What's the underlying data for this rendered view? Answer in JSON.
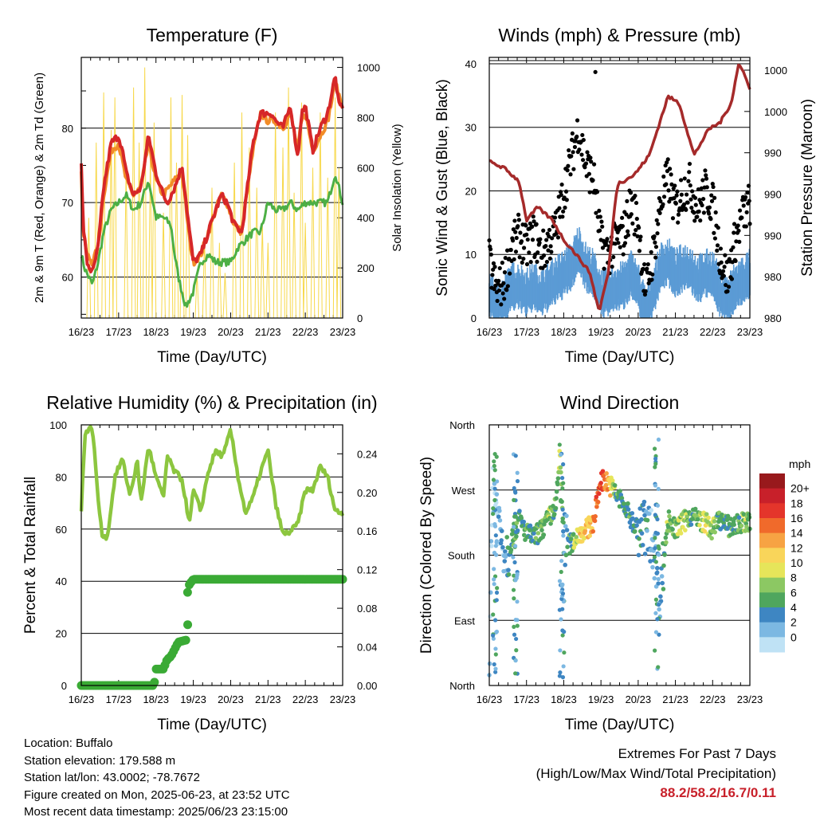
{
  "days": [
    "16/23",
    "17/23",
    "18/23",
    "19/23",
    "20/23",
    "21/23",
    "22/23",
    "23/23"
  ],
  "colors": {
    "temp_2m": "#d62728",
    "temp_9m": "#f28c28",
    "dewpoint": "#4daf45",
    "solar": "#f7d84a",
    "wind": "#5b9bd5",
    "gust": "#000000",
    "pressure": "#a52a2a",
    "humidity": "#8cc63f",
    "precip": "#3aaa35",
    "extremes_text": "#c8202a"
  },
  "info": {
    "location": "Location: Buffalo",
    "elevation": "Station elevation: 179.588 m",
    "latlon": "Station lat/lon: 43.0002; -78.7672",
    "created": "Figure created on Mon, 2025-06-23, at 23:52 UTC",
    "recent": "Most recent data timestamp: 2025/06/23 23:15:00"
  },
  "extremes": {
    "title": "Extremes For Past 7 Days",
    "subtitle": "(High/Low/Max Wind/Total Precipitation)",
    "values": "88.2/58.2/16.7/0.11"
  },
  "chart_data": [
    {
      "type": "line",
      "title": "Temperature (F)",
      "xlabel": "Time (Day/UTC)",
      "ylabel": "2m & 9m T (Red, Orange) & 2m Td (Green)",
      "y2label": "Solar Insolation (Yellow)",
      "xlim": [
        0,
        7
      ],
      "ylim": [
        54.5,
        89.5
      ],
      "y2lim": [
        0,
        1040
      ],
      "yticks": [
        60,
        70,
        80
      ],
      "y2ticks": [
        0,
        200,
        400,
        600,
        800,
        1000
      ],
      "grid": true,
      "series": [
        {
          "key": "t2m",
          "axis": "y",
          "x": [
            0,
            0.05,
            0.15,
            0.3,
            0.45,
            0.6,
            0.8,
            1.0,
            1.1,
            1.2,
            1.4,
            1.6,
            1.8,
            2.0,
            2.2,
            2.3,
            2.5,
            2.7,
            2.9,
            3.0,
            3.2,
            3.4,
            3.6,
            3.75,
            3.9,
            4.1,
            4.3,
            4.4,
            4.6,
            4.8,
            5.0,
            5.1,
            5.2,
            5.4,
            5.6,
            5.8,
            5.9,
            6.0,
            6.2,
            6.4,
            6.6,
            6.8,
            6.9,
            7.0
          ],
          "values": [
            75,
            67,
            62,
            60.5,
            64,
            72,
            78,
            79,
            77,
            74,
            71,
            72,
            79,
            74,
            71,
            70,
            72,
            75,
            66,
            62,
            63,
            66,
            69,
            71,
            70,
            67,
            66,
            70,
            78,
            82,
            82,
            82,
            81,
            80,
            83,
            76,
            82,
            83,
            77,
            80,
            82,
            87,
            83,
            83
          ]
        },
        {
          "key": "t9m",
          "axis": "y",
          "x": [
            0,
            0.05,
            0.15,
            0.3,
            0.45,
            0.6,
            0.8,
            1.0,
            1.2,
            1.4,
            1.6,
            1.8,
            2.0,
            2.2,
            2.5,
            2.7,
            2.9,
            3.0,
            3.2,
            3.4,
            3.6,
            3.75,
            3.9,
            4.1,
            4.3,
            4.4,
            4.6,
            4.8,
            5.0,
            5.2,
            5.4,
            5.6,
            5.8,
            5.9,
            6.0,
            6.2,
            6.4,
            6.6,
            6.8,
            7.0
          ],
          "values": [
            74,
            66,
            63,
            62,
            64,
            71,
            77,
            78,
            73,
            71,
            72,
            78,
            73,
            71,
            73,
            74,
            65,
            62,
            63,
            66,
            69,
            71,
            70,
            67,
            66,
            70,
            77,
            82,
            81,
            81,
            80,
            82,
            77,
            81,
            82,
            77,
            79,
            81,
            86,
            83
          ]
        },
        {
          "key": "td",
          "axis": "y",
          "x": [
            0,
            0.1,
            0.3,
            0.45,
            0.6,
            0.8,
            1.0,
            1.2,
            1.4,
            1.6,
            1.8,
            2.0,
            2.2,
            2.4,
            2.5,
            2.6,
            2.8,
            3.0,
            3.2,
            3.4,
            3.6,
            3.8,
            4.0,
            4.2,
            4.4,
            4.6,
            4.8,
            5.0,
            5.2,
            5.4,
            5.6,
            5.8,
            6.0,
            6.2,
            6.4,
            6.6,
            6.8,
            6.9,
            7.0
          ],
          "values": [
            63,
            61,
            59,
            62,
            66,
            69,
            70,
            71,
            69,
            70,
            73,
            68,
            68,
            67,
            63,
            60,
            56,
            58,
            62,
            63,
            62,
            62,
            62,
            64,
            65,
            66,
            66,
            70,
            69,
            69,
            70,
            69,
            70,
            70,
            70,
            70,
            74,
            72,
            70
          ]
        },
        {
          "key": "solar",
          "axis": "y2",
          "style": "spikes",
          "peaks_x": [
            0.2,
            0.4,
            0.6,
            0.8,
            0.9,
            1.2,
            1.4,
            1.55,
            1.7,
            1.85,
            1.95,
            2.2,
            2.4,
            2.55,
            2.7,
            2.85,
            3.1,
            3.3,
            3.5,
            3.7,
            3.85,
            4.1,
            4.3,
            4.5,
            4.7,
            4.85,
            5.0,
            5.2,
            5.4,
            5.55,
            5.7,
            5.9,
            6.0,
            6.2,
            6.4,
            6.6,
            6.8,
            6.9
          ],
          "values": [
            400,
            700,
            900,
            750,
            880,
            600,
            920,
            700,
            1000,
            650,
            780,
            420,
            880,
            620,
            890,
            730,
            180,
            320,
            520,
            300,
            180,
            620,
            820,
            680,
            520,
            380,
            300,
            820,
            680,
            920,
            500,
            860,
            380,
            600,
            820,
            560,
            880,
            600
          ]
        }
      ]
    },
    {
      "type": "line",
      "title": "Winds (mph) & Pressure (mb)",
      "xlabel": "Time (Day/UTC)",
      "ylabel": "Sonic Wind & Gust (Blue, Black)",
      "y2label": "Station Pressure (Maroon)",
      "xlim": [
        0,
        7
      ],
      "ylim": [
        0,
        41
      ],
      "yticks": [
        0,
        10,
        20,
        30,
        40
      ],
      "y2_tick_labels": [
        "980",
        "980",
        "990",
        "990",
        "990",
        "1000",
        "1000"
      ],
      "grid": true,
      "series": [
        {
          "key": "gust",
          "style": "points",
          "x": [
            0,
            0.2,
            0.4,
            0.6,
            0.8,
            1.0,
            1.2,
            1.4,
            1.6,
            1.8,
            2.0,
            2.2,
            2.4,
            2.6,
            2.8,
            3.0,
            3.2,
            3.4,
            3.6,
            3.8,
            4.0,
            4.2,
            4.4,
            4.6,
            4.8,
            5.0,
            5.2,
            5.4,
            5.6,
            5.8,
            6.0,
            6.2,
            6.4,
            6.6,
            6.8,
            7.0
          ],
          "values": [
            9,
            4,
            6,
            11,
            13,
            11,
            13,
            10,
            12,
            14,
            20,
            25,
            30,
            24,
            22,
            12,
            10,
            12,
            13,
            18,
            15,
            4,
            10,
            18,
            22,
            17,
            20,
            21,
            17,
            20,
            18,
            10,
            6,
            12,
            16,
            18
          ]
        },
        {
          "key": "wind",
          "style": "band",
          "x": [
            0,
            0.2,
            0.4,
            0.6,
            0.8,
            1.0,
            1.2,
            1.4,
            1.6,
            1.8,
            2.0,
            2.2,
            2.4,
            2.6,
            2.8,
            3.0,
            3.2,
            3.4,
            3.6,
            3.8,
            4.0,
            4.2,
            4.4,
            4.6,
            4.8,
            5.0,
            5.2,
            5.4,
            5.6,
            5.8,
            6.0,
            6.2,
            6.4,
            6.6,
            6.8,
            7.0
          ],
          "values": [
            4,
            2,
            3,
            5,
            5,
            4,
            5,
            4,
            5,
            6,
            7,
            8,
            11,
            8,
            7,
            4,
            4,
            5,
            5,
            7,
            5,
            1,
            4,
            8,
            9,
            7,
            8,
            8,
            6,
            7,
            7,
            4,
            3,
            5,
            6,
            7
          ]
        },
        {
          "key": "pressure",
          "x": [
            0,
            0.4,
            0.8,
            1.0,
            1.3,
            1.5,
            1.7,
            2.0,
            2.3,
            2.7,
            2.95,
            3.2,
            3.4,
            3.5,
            3.6,
            3.9,
            4.3,
            4.8,
            5.1,
            5.5,
            5.7,
            5.9,
            6.2,
            6.5,
            6.7,
            6.9,
            7.0
          ],
          "values": [
            985,
            984,
            982,
            976,
            978,
            977,
            976,
            973,
            971,
            968,
            962,
            968,
            980,
            982,
            982,
            983,
            986,
            995,
            994,
            986,
            988,
            990,
            991,
            994,
            1000,
            998,
            996
          ]
        }
      ],
      "pressure_range": [
        961,
        1001
      ]
    },
    {
      "type": "line",
      "title": "Relative Humidity (%) & Precipitation (in)",
      "xlabel": "Time (Day/UTC)",
      "ylabel": "Percent & Total Rainfall",
      "xlim": [
        0,
        7
      ],
      "ylim": [
        0,
        100
      ],
      "yticks": [
        0,
        20,
        40,
        60,
        80,
        100
      ],
      "y2ticks": [
        "0.00",
        "0.04",
        "0.08",
        "0.12",
        "0.16",
        "0.20",
        "0.24"
      ],
      "grid": true,
      "series": [
        {
          "key": "rh",
          "x": [
            0,
            0.1,
            0.2,
            0.3,
            0.45,
            0.55,
            0.7,
            0.9,
            1.1,
            1.3,
            1.5,
            1.6,
            1.8,
            2.0,
            2.2,
            2.3,
            2.5,
            2.7,
            2.9,
            3.0,
            3.2,
            3.4,
            3.6,
            3.8,
            4.0,
            4.2,
            4.4,
            4.6,
            4.8,
            5.0,
            5.2,
            5.4,
            5.6,
            5.8,
            6.0,
            6.2,
            6.4,
            6.6,
            6.8,
            7.0
          ],
          "values": [
            67,
            97,
            98,
            99,
            72,
            58,
            57,
            80,
            87,
            73,
            86,
            70,
            92,
            80,
            72,
            88,
            82,
            79,
            62,
            75,
            67,
            82,
            90,
            88,
            98,
            80,
            66,
            72,
            82,
            90,
            70,
            58,
            59,
            62,
            75,
            75,
            84,
            80,
            67,
            66
          ]
        },
        {
          "key": "precip",
          "style": "points",
          "x": [
            0,
            0.5,
            1.0,
            1.5,
            1.95,
            2.0,
            2.2,
            2.3,
            2.4,
            2.6,
            2.8,
            2.85,
            2.9,
            3.0,
            3.5,
            4.0,
            5.0,
            6.0,
            7.0
          ],
          "values": [
            0,
            0,
            0,
            0,
            0,
            0.017,
            0.017,
            0.027,
            0.03,
            0.045,
            0.047,
            0.1,
            0.105,
            0.11,
            0.11,
            0.11,
            0.11,
            0.11,
            0.11
          ]
        }
      ]
    },
    {
      "type": "scatter",
      "title": "Wind Direction",
      "xlabel": "Time (Day/UTC)",
      "ylabel": "Direction (Colored By Speed)",
      "xlim": [
        0,
        7
      ],
      "ylim": [
        0,
        360
      ],
      "ytick_labels": [
        "North",
        "East",
        "South",
        "West",
        "North"
      ],
      "grid": true,
      "legend": {
        "unit": "mph",
        "labels": [
          "20+",
          "18",
          "16",
          "14",
          "12",
          "10",
          "8",
          "6",
          "4",
          "2",
          "0"
        ],
        "colors": [
          "#98191c",
          "#c8202a",
          "#e4352b",
          "#f06a2b",
          "#f7a343",
          "#f9d55a",
          "#e6e55a",
          "#8cc863",
          "#4fa65e",
          "#3e86c2",
          "#7cb8e2",
          "#bfe2f5"
        ]
      },
      "series": [
        {
          "x": [
            0,
            0.1,
            0.2,
            0.3,
            0.4,
            0.5,
            0.6,
            0.7,
            0.8,
            1.0,
            1.2,
            1.4,
            1.6,
            1.8,
            1.9,
            2.0,
            2.2,
            2.4,
            2.6,
            2.8,
            3.0,
            3.2,
            3.4,
            3.6,
            3.8,
            4.0,
            4.2,
            4.4,
            4.6,
            4.8,
            5.0,
            5.2,
            5.4,
            5.6,
            5.8,
            6.0,
            6.2,
            6.4,
            6.6,
            6.8,
            7.0
          ],
          "values": [
            40,
            280,
            250,
            210,
            190,
            185,
            200,
            215,
            230,
            210,
            205,
            215,
            230,
            250,
            320,
            200,
            195,
            210,
            215,
            225,
            285,
            280,
            265,
            250,
            230,
            215,
            220,
            200,
            130,
            230,
            215,
            225,
            235,
            230,
            225,
            215,
            230,
            220,
            220,
            225,
            225
          ],
          "speeds": [
            2,
            1,
            1,
            3,
            2,
            4,
            6,
            7,
            5,
            6,
            5,
            7,
            8,
            6,
            10,
            4,
            6,
            11,
            12,
            14,
            18,
            14,
            6,
            5,
            6,
            5,
            4,
            2,
            3,
            8,
            7,
            9,
            6,
            7,
            10,
            8,
            5,
            6,
            5,
            8,
            7
          ]
        }
      ]
    }
  ]
}
